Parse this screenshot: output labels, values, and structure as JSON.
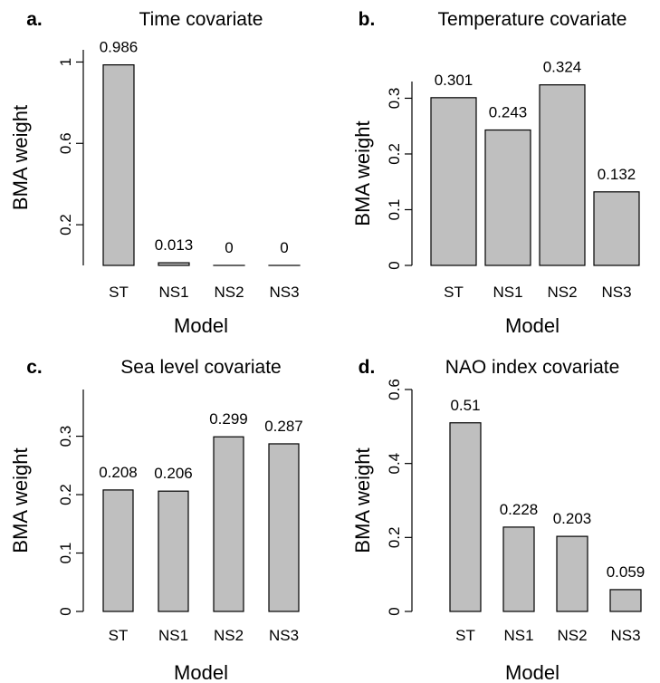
{
  "chart_data": [
    {
      "type": "bar",
      "panel_label": "a.",
      "title": "Time covariate",
      "xlabel": "Model",
      "ylabel": "BMA weight",
      "categories": [
        "ST",
        "NS1",
        "NS2",
        "NS3"
      ],
      "values": [
        0.986,
        0.013,
        0,
        0
      ],
      "value_labels": [
        "0.986",
        "0.013",
        "0",
        "0"
      ],
      "yticks": [
        0.2,
        0.6,
        1
      ],
      "ytick_labels": [
        "0.2",
        "0.6",
        "1"
      ],
      "ylim": [
        0,
        1.06
      ],
      "bar_color": "#bfbfbf",
      "grid": false
    },
    {
      "type": "bar",
      "panel_label": "b.",
      "title": "Temperature covariate",
      "xlabel": "Model",
      "ylabel": "BMA weight",
      "categories": [
        "ST",
        "NS1",
        "NS2",
        "NS3"
      ],
      "values": [
        0.301,
        0.243,
        0.324,
        0.132
      ],
      "value_labels": [
        "0.301",
        "0.243",
        "0.324",
        "0.132"
      ],
      "yticks": [
        0,
        0.1,
        0.2,
        0.3
      ],
      "ytick_labels": [
        "0",
        "0.1",
        "0.2",
        "0.3"
      ],
      "ylim": [
        0,
        0.33
      ],
      "bar_color": "#bfbfbf",
      "grid": false
    },
    {
      "type": "bar",
      "panel_label": "c.",
      "title": "Sea level covariate",
      "xlabel": "Model",
      "ylabel": "BMA weight",
      "categories": [
        "ST",
        "NS1",
        "NS2",
        "NS3"
      ],
      "values": [
        0.208,
        0.206,
        0.299,
        0.287
      ],
      "value_labels": [
        "0.208",
        "0.206",
        "0.299",
        "0.287"
      ],
      "yticks": [
        0,
        0.1,
        0.2,
        0.3
      ],
      "ytick_labels": [
        "0",
        "0.1",
        "0.2",
        "0.3"
      ],
      "ylim": [
        0,
        0.38
      ],
      "bar_color": "#bfbfbf",
      "grid": false
    },
    {
      "type": "bar",
      "panel_label": "d.",
      "title": "NAO index covariate",
      "xlabel": "Model",
      "ylabel": "BMA weight",
      "categories": [
        "ST",
        "NS1",
        "NS2",
        "NS3"
      ],
      "values": [
        0.51,
        0.228,
        0.203,
        0.059
      ],
      "value_labels": [
        "0.51",
        "0.228",
        "0.203",
        "0.059"
      ],
      "yticks": [
        0,
        0.2,
        0.4,
        0.6
      ],
      "ytick_labels": [
        "0",
        "0.2",
        "0.4",
        "0.6"
      ],
      "ylim": [
        0,
        0.6
      ],
      "bar_color": "#bfbfbf",
      "grid": false
    }
  ]
}
